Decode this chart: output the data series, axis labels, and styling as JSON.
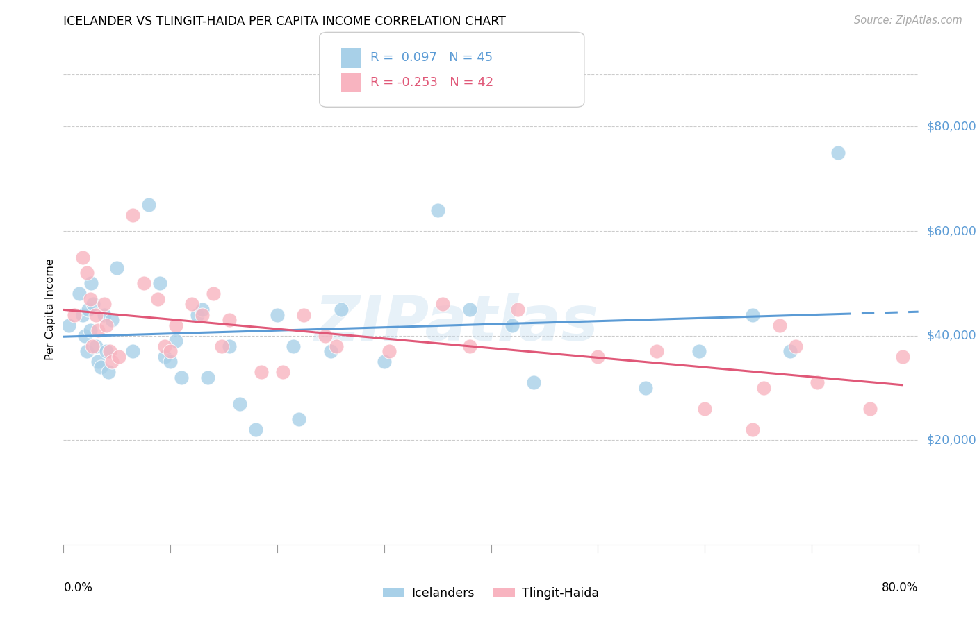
{
  "title": "ICELANDER VS TLINGIT-HAIDA PER CAPITA INCOME CORRELATION CHART",
  "source": "Source: ZipAtlas.com",
  "ylabel": "Per Capita Income",
  "legend_label1": "Icelanders",
  "legend_label2": "Tlingit-Haida",
  "R1": 0.097,
  "N1": 45,
  "R2": -0.253,
  "N2": 42,
  "blue_color": "#a8d0e8",
  "pink_color": "#f8b4c0",
  "line_blue": "#5b9bd5",
  "line_pink": "#e05878",
  "watermark": "ZIPatlas",
  "ylim_low": 0,
  "ylim_high": 90000,
  "xlim_low": 0.0,
  "xlim_high": 0.8,
  "yticks": [
    20000,
    40000,
    60000,
    80000
  ],
  "ytick_labels": [
    "$20,000",
    "$40,000",
    "$60,000",
    "$80,000"
  ],
  "blue_x": [
    0.005,
    0.015,
    0.018,
    0.02,
    0.022,
    0.023,
    0.025,
    0.026,
    0.028,
    0.03,
    0.032,
    0.035,
    0.038,
    0.04,
    0.042,
    0.045,
    0.05,
    0.065,
    0.08,
    0.09,
    0.095,
    0.1,
    0.105,
    0.11,
    0.125,
    0.13,
    0.135,
    0.155,
    0.165,
    0.18,
    0.2,
    0.215,
    0.22,
    0.25,
    0.26,
    0.3,
    0.35,
    0.38,
    0.42,
    0.44,
    0.545,
    0.595,
    0.645,
    0.68,
    0.725
  ],
  "blue_y": [
    42000,
    48000,
    44000,
    40000,
    37000,
    45000,
    41000,
    50000,
    46000,
    38000,
    35000,
    34000,
    44000,
    37000,
    33000,
    43000,
    53000,
    37000,
    65000,
    50000,
    36000,
    35000,
    39000,
    32000,
    44000,
    45000,
    32000,
    38000,
    27000,
    22000,
    44000,
    38000,
    24000,
    37000,
    45000,
    35000,
    64000,
    45000,
    42000,
    31000,
    30000,
    37000,
    44000,
    37000,
    75000
  ],
  "pink_x": [
    0.01,
    0.018,
    0.022,
    0.025,
    0.027,
    0.03,
    0.032,
    0.038,
    0.04,
    0.043,
    0.045,
    0.052,
    0.065,
    0.075,
    0.088,
    0.095,
    0.1,
    0.105,
    0.12,
    0.13,
    0.14,
    0.148,
    0.155,
    0.185,
    0.205,
    0.225,
    0.245,
    0.255,
    0.305,
    0.355,
    0.38,
    0.425,
    0.5,
    0.555,
    0.6,
    0.645,
    0.655,
    0.67,
    0.685,
    0.705,
    0.755,
    0.785
  ],
  "pink_y": [
    44000,
    55000,
    52000,
    47000,
    38000,
    44000,
    41000,
    46000,
    42000,
    37000,
    35000,
    36000,
    63000,
    50000,
    47000,
    38000,
    37000,
    42000,
    46000,
    44000,
    48000,
    38000,
    43000,
    33000,
    33000,
    44000,
    40000,
    38000,
    37000,
    46000,
    38000,
    45000,
    36000,
    37000,
    26000,
    22000,
    30000,
    42000,
    38000,
    31000,
    26000,
    36000
  ]
}
